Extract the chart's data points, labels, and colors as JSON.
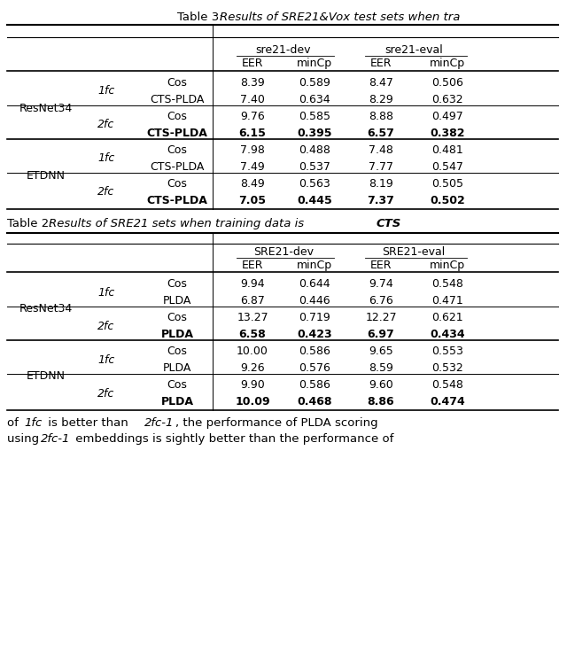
{
  "table3_title_plain": "Table 3: ",
  "table3_title_italic": "Results of SRE21&Vox test sets when tra",
  "table3_rows": [
    {
      "backend": "Cos",
      "d_eer": "8.39",
      "d_mincp": "0.589",
      "e_eer": "8.47",
      "e_mincp": "0.506",
      "bold": false
    },
    {
      "backend": "CTS-PLDA",
      "d_eer": "7.40",
      "d_mincp": "0.634",
      "e_eer": "8.29",
      "e_mincp": "0.632",
      "bold": false
    },
    {
      "backend": "Cos",
      "d_eer": "9.76",
      "d_mincp": "0.585",
      "e_eer": "8.88",
      "e_mincp": "0.497",
      "bold": false
    },
    {
      "backend": "CTS-PLDA",
      "d_eer": "6.15",
      "d_mincp": "0.395",
      "e_eer": "6.57",
      "e_mincp": "0.382",
      "bold": true
    },
    {
      "backend": "Cos",
      "d_eer": "7.98",
      "d_mincp": "0.488",
      "e_eer": "7.48",
      "e_mincp": "0.481",
      "bold": false
    },
    {
      "backend": "CTS-PLDA",
      "d_eer": "7.49",
      "d_mincp": "0.537",
      "e_eer": "7.77",
      "e_mincp": "0.547",
      "bold": false
    },
    {
      "backend": "Cos",
      "d_eer": "8.49",
      "d_mincp": "0.563",
      "e_eer": "8.19",
      "e_mincp": "0.505",
      "bold": false
    },
    {
      "backend": "CTS-PLDA",
      "d_eer": "7.05",
      "d_mincp": "0.445",
      "e_eer": "7.37",
      "e_mincp": "0.502",
      "bold": true
    }
  ],
  "table2_title_plain": "Table 2: ",
  "table2_title_italic": "Results of SRE21 sets when training data is ",
  "table2_title_bold_italic": "CTS",
  "table2_rows": [
    {
      "backend": "Cos",
      "d_eer": "9.94",
      "d_mincp": "0.644",
      "e_eer": "9.74",
      "e_mincp": "0.548",
      "bold": false
    },
    {
      "backend": "PLDA",
      "d_eer": "6.87",
      "d_mincp": "0.446",
      "e_eer": "6.76",
      "e_mincp": "0.471",
      "bold": false
    },
    {
      "backend": "Cos",
      "d_eer": "13.27",
      "d_mincp": "0.719",
      "e_eer": "12.27",
      "e_mincp": "0.621",
      "bold": false
    },
    {
      "backend": "PLDA",
      "d_eer": "6.58",
      "d_mincp": "0.423",
      "e_eer": "6.97",
      "e_mincp": "0.434",
      "bold": true
    },
    {
      "backend": "Cos",
      "d_eer": "10.00",
      "d_mincp": "0.586",
      "e_eer": "9.65",
      "e_mincp": "0.553",
      "bold": false
    },
    {
      "backend": "PLDA",
      "d_eer": "9.26",
      "d_mincp": "0.576",
      "e_eer": "8.59",
      "e_mincp": "0.532",
      "bold": false
    },
    {
      "backend": "Cos",
      "d_eer": "9.90",
      "d_mincp": "0.586",
      "e_eer": "9.60",
      "e_mincp": "0.548",
      "bold": false
    },
    {
      "backend": "PLDA",
      "d_eer": "10.09",
      "d_mincp": "0.468",
      "e_eer": "8.86",
      "e_mincp": "0.474",
      "bold": true
    }
  ],
  "bg_color": "#ffffff",
  "fig_width": 6.4,
  "fig_height": 7.45,
  "dpi": 100
}
